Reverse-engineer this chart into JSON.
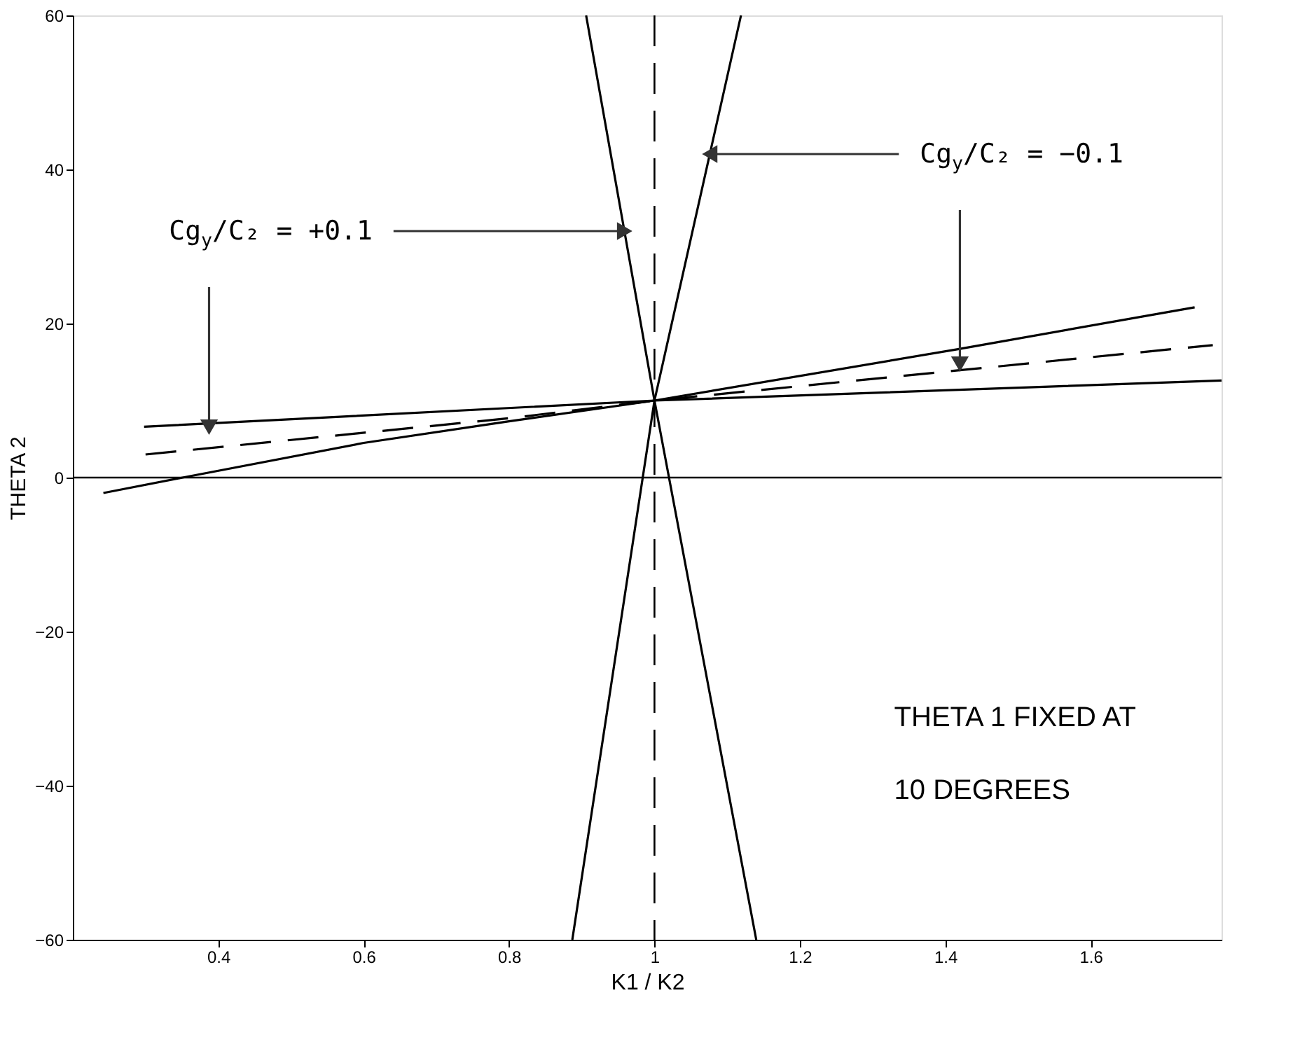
{
  "chart_data": {
    "type": "line",
    "xlabel": "K1 / K2",
    "ylabel": "THETA 2",
    "xlim": [
      0.2,
      1.78
    ],
    "ylim": [
      -60,
      60
    ],
    "xticks": [
      0.4,
      0.6,
      0.8,
      {
        "value": 1,
        "label": "1"
      },
      1.2,
      1.4,
      1.6
    ],
    "yticks": [
      -60,
      -40,
      -20,
      0,
      20,
      40,
      60
    ],
    "grid": false,
    "marker": "none",
    "series": [
      {
        "color": "#000000",
        "line_style": "solid",
        "x": [
          0.906,
          1.0,
          1.14
        ],
        "values": [
          60,
          10,
          -60
        ]
      },
      {
        "color": "#000000",
        "line_style": "solid",
        "x": [
          1.119,
          1.0,
          0.887
        ],
        "values": [
          60,
          10,
          -60
        ]
      },
      {
        "color": "#000000",
        "line_style": "solid",
        "x": [
          0.298,
          1.0,
          1.78
        ],
        "values": [
          6.6,
          10,
          12.6
        ]
      },
      {
        "color": "#000000",
        "line_style": "solid",
        "x": [
          0.242,
          0.351,
          0.6,
          0.8,
          1.0,
          1.419,
          1.743
        ],
        "values": [
          -2,
          0,
          4.5,
          7.3,
          10,
          16.7,
          22.1
        ]
      },
      {
        "color": "#000000",
        "line_style": "dashed",
        "x": [
          0.3,
          0.8,
          1.0,
          1.768
        ],
        "values": [
          3,
          7.7,
          10,
          17.2
        ]
      }
    ],
    "ref_lines": [
      {
        "axis": "x",
        "value": 1,
        "line_style": "dashed",
        "color": "#000000"
      },
      {
        "axis": "y",
        "value": 0,
        "line_style": "solid",
        "color": "#000000"
      }
    ],
    "annotations": [
      {
        "text": "Cg$_{y}$/C₂ = +0.1",
        "x": 0.959,
        "y": 32
      },
      {
        "text": "Cg$_{y}$/C₂ = −0.1",
        "x": 1.076,
        "y": 42
      },
      "THETA 1 FIXED AT\n10 DEGREES"
    ]
  }
}
